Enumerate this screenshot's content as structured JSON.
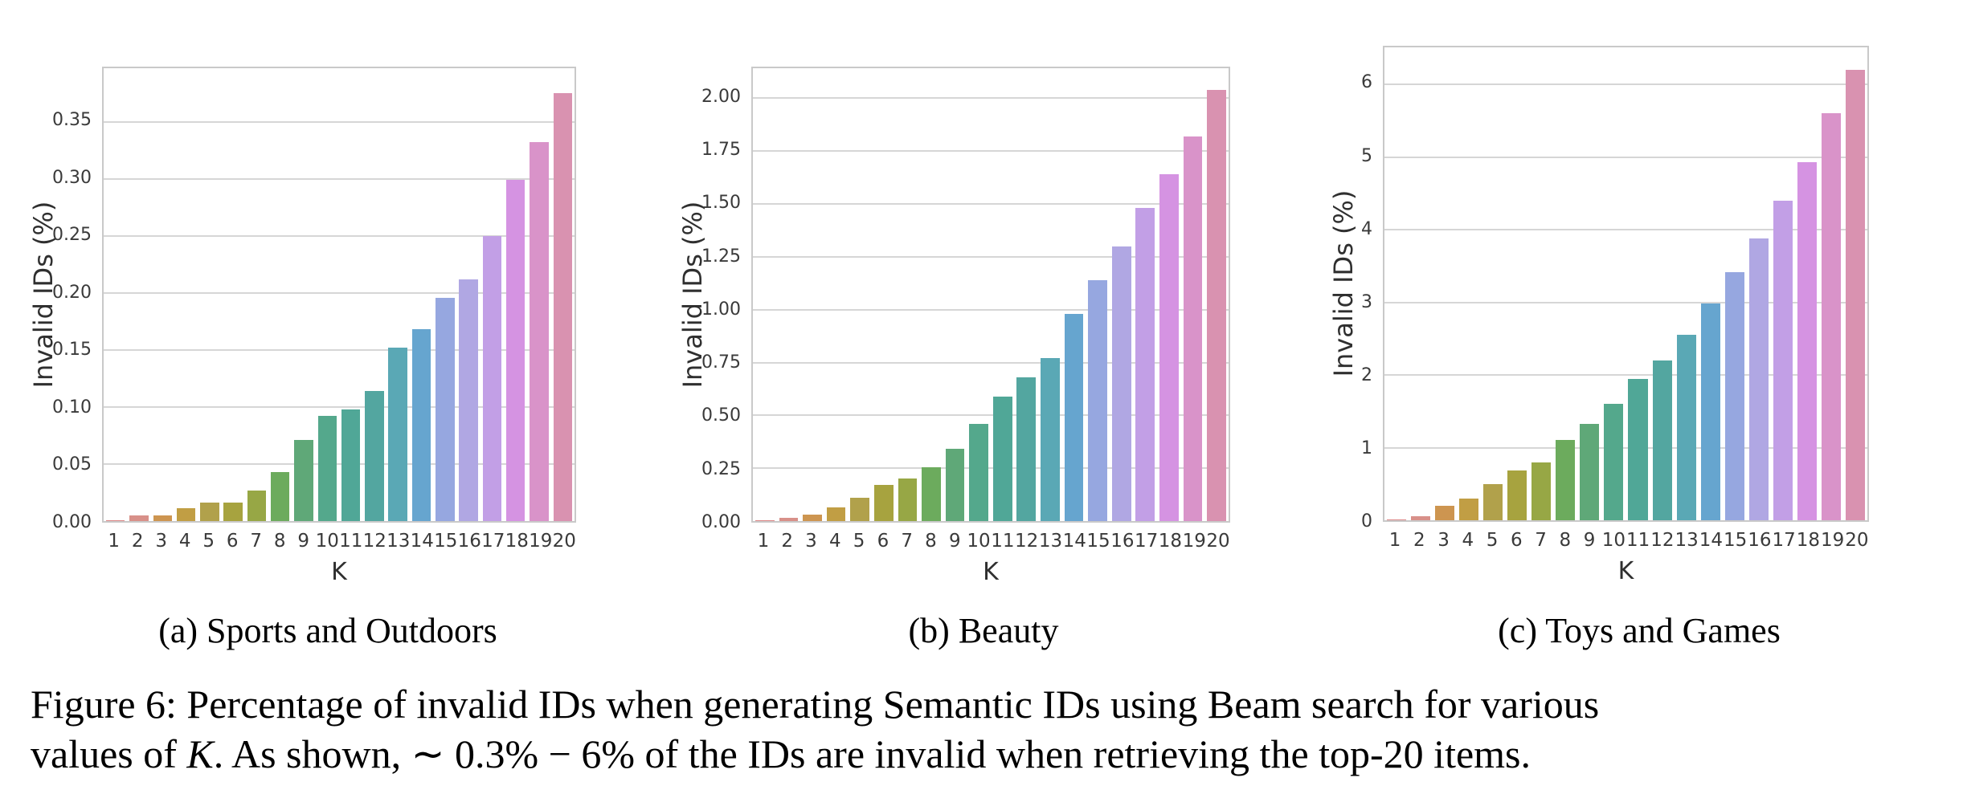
{
  "figure": {
    "caption_line1": "Figure 6: Percentage of invalid IDs when generating Semantic IDs using Beam search for various",
    "caption_line2_part1": "values of ",
    "caption_line2_k": "K",
    "caption_line2_part2": ". As shown, ",
    "caption_line2_range": "∼ 0.3% − 6%",
    "caption_line2_part3": " of the IDs are invalid when retrieving the top-20 items."
  },
  "styles": {
    "grid_color": "#d6d6d6",
    "axis_border_color": "#c9c9c9",
    "tick_text_color": "#3a3a3a",
    "caption_text_color": "#000000",
    "background_color": "#ffffff"
  },
  "palette": [
    "#dc8888",
    "#d89089",
    "#cd9550",
    "#c19e44",
    "#b1a14b",
    "#a7a33f",
    "#97a745",
    "#6cab5d",
    "#5fa878",
    "#54a88c",
    "#50a797",
    "#53a6a0",
    "#5aa8b5",
    "#66a5cf",
    "#96a7e0",
    "#b0a7e3",
    "#c29fe6",
    "#d593e2",
    "#d993c9",
    "#d992b0"
  ],
  "chart_data": [
    {
      "type": "bar",
      "subcaption": "(a) Sports and Outdoors",
      "xlabel": "K",
      "ylabel": "Invalid IDs (%)",
      "categories": [
        "1",
        "2",
        "3",
        "4",
        "5",
        "6",
        "7",
        "8",
        "9",
        "10",
        "11",
        "12",
        "13",
        "14",
        "15",
        "16",
        "17",
        "18",
        "19",
        "20"
      ],
      "values": [
        0.001,
        0.005,
        0.005,
        0.011,
        0.016,
        0.016,
        0.027,
        0.043,
        0.071,
        0.092,
        0.098,
        0.114,
        0.152,
        0.168,
        0.196,
        0.212,
        0.25,
        0.299,
        0.332,
        0.375
      ],
      "yticks": [
        0.0,
        0.05,
        0.1,
        0.15,
        0.2,
        0.25,
        0.3,
        0.35
      ],
      "ytick_labels": [
        "0.00",
        "0.05",
        "0.10",
        "0.15",
        "0.20",
        "0.25",
        "0.30",
        "0.35"
      ],
      "ylim": [
        0,
        0.397
      ],
      "grid": "horizontal",
      "legend": "none"
    },
    {
      "type": "bar",
      "subcaption": "(b) Beauty",
      "xlabel": "K",
      "ylabel": "Invalid IDs (%)",
      "categories": [
        "1",
        "2",
        "3",
        "4",
        "5",
        "6",
        "7",
        "8",
        "9",
        "10",
        "11",
        "12",
        "13",
        "14",
        "15",
        "16",
        "17",
        "18",
        "19",
        "20"
      ],
      "values": [
        0.005,
        0.015,
        0.03,
        0.065,
        0.11,
        0.17,
        0.2,
        0.255,
        0.34,
        0.46,
        0.59,
        0.68,
        0.77,
        0.98,
        1.14,
        1.3,
        1.48,
        1.64,
        1.82,
        2.04
      ],
      "yticks": [
        0.0,
        0.25,
        0.5,
        0.75,
        1.0,
        1.25,
        1.5,
        1.75,
        2.0
      ],
      "ytick_labels": [
        "0.00",
        "0.25",
        "0.50",
        "0.75",
        "1.00",
        "1.25",
        "1.50",
        "1.75",
        "2.00"
      ],
      "ylim": [
        0,
        2.142
      ],
      "grid": "horizontal",
      "legend": "none"
    },
    {
      "type": "bar",
      "subcaption": "(c) Toys and Games",
      "xlabel": "K",
      "ylabel": "Invalid IDs (%)",
      "categories": [
        "1",
        "2",
        "3",
        "4",
        "5",
        "6",
        "7",
        "8",
        "9",
        "10",
        "11",
        "12",
        "13",
        "14",
        "15",
        "16",
        "17",
        "18",
        "19",
        "20"
      ],
      "values": [
        0.01,
        0.05,
        0.2,
        0.3,
        0.5,
        0.68,
        0.8,
        1.1,
        1.33,
        1.6,
        1.95,
        2.2,
        2.55,
        2.98,
        3.42,
        3.88,
        4.4,
        4.93,
        5.6,
        6.2
      ],
      "yticks": [
        0,
        1,
        2,
        3,
        4,
        5,
        6
      ],
      "ytick_labels": [
        "0",
        "1",
        "2",
        "3",
        "4",
        "5",
        "6"
      ],
      "ylim": [
        0,
        6.51
      ],
      "grid": "horizontal",
      "legend": "none"
    }
  ]
}
